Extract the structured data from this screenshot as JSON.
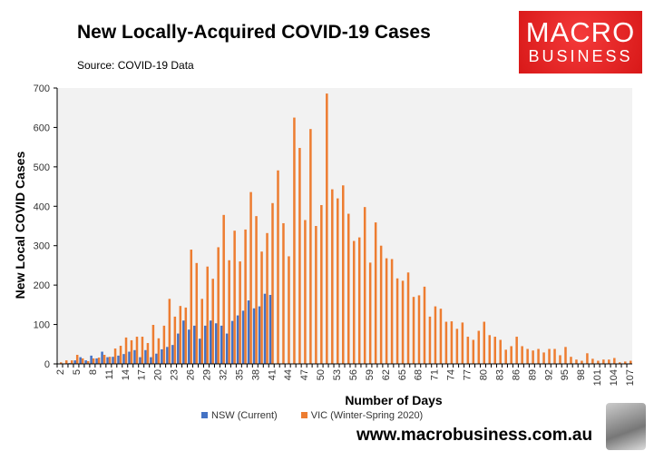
{
  "header": {
    "title": "New Locally-Acquired COVID-19 Cases",
    "source": "Source: COVID-19 Data"
  },
  "logo": {
    "line1": "MACRO",
    "line2": "BUSINESS"
  },
  "footer": {
    "url": "www.macrobusiness.com.au"
  },
  "chart_data": {
    "type": "bar",
    "title": "New Locally-Acquired COVID-19 Cases",
    "xlabel": "Number of Days",
    "ylabel": "New Local COVID Cases",
    "ylim": [
      0,
      700
    ],
    "yticks": [
      0,
      100,
      200,
      300,
      400,
      500,
      600,
      700
    ],
    "x_start": 2,
    "x_end": 107,
    "x_tick_step": 3,
    "legend_position": "bottom",
    "grid": false,
    "series": [
      {
        "name": "NSW (Current)",
        "color": "#4472c4",
        "start_day": 2,
        "values": [
          0,
          1,
          2,
          9,
          17,
          9,
          21,
          14,
          31,
          17,
          18,
          21,
          25,
          31,
          35,
          17,
          35,
          17,
          26,
          37,
          43,
          48,
          77,
          110,
          87,
          97,
          64,
          97,
          110,
          103,
          97,
          77,
          109,
          123,
          135,
          161,
          141,
          146,
          178,
          175
        ]
      },
      {
        "name": "VIC (Winter-Spring 2020)",
        "color": "#ed7d31",
        "start_day": 2,
        "values": [
          4,
          9,
          9,
          23,
          14,
          7,
          14,
          16,
          23,
          18,
          39,
          46,
          67,
          60,
          69,
          69,
          53,
          99,
          65,
          97,
          165,
          120,
          147,
          143,
          290,
          256,
          165,
          247,
          216,
          296,
          378,
          263,
          338,
          260,
          341,
          436,
          375,
          285,
          332,
          408,
          491,
          357,
          273,
          625,
          548,
          365,
          596,
          350,
          403,
          686,
          443,
          420,
          453,
          381,
          312,
          321,
          398,
          257,
          359,
          300,
          268,
          266,
          217,
          211,
          232,
          170,
          174,
          196,
          120,
          146,
          140,
          107,
          108,
          89,
          105,
          69,
          61,
          84,
          107,
          73,
          69,
          61,
          36,
          45,
          69,
          45,
          38,
          34,
          38,
          29,
          38,
          38,
          22,
          43,
          18,
          11,
          8,
          27,
          13,
          8,
          11,
          11,
          15,
          4,
          6,
          8
        ]
      }
    ]
  }
}
